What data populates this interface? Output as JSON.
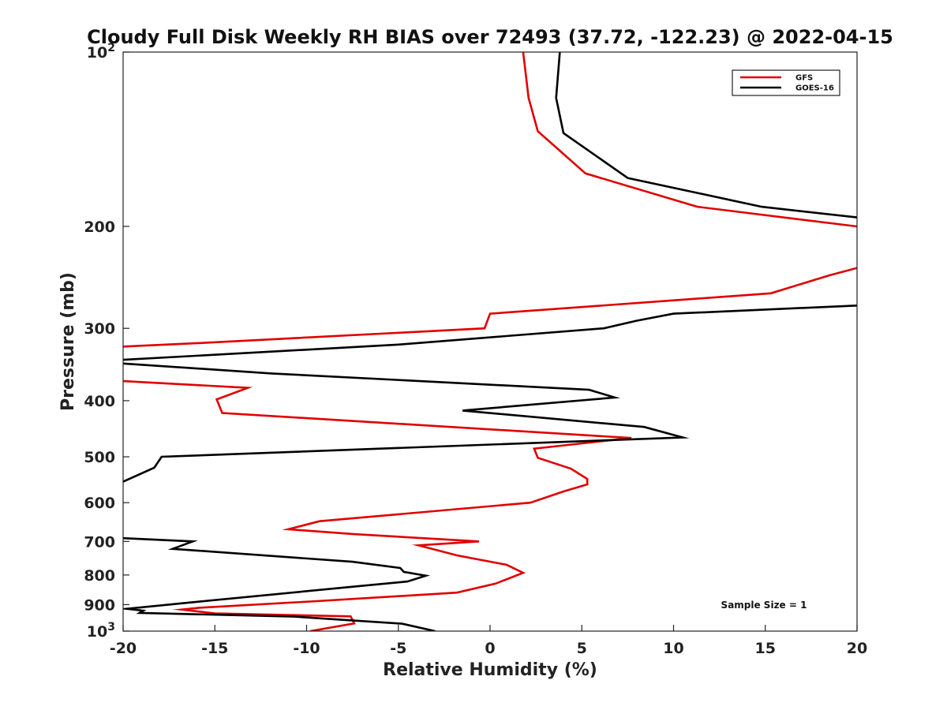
{
  "chart_data": {
    "type": "line",
    "title": "Cloudy Full Disk Weekly RH BIAS over 72493 (37.72, -122.23) @ 2022-04-15",
    "xlabel": "Relative Humidity (%)",
    "ylabel": "Pressure (mb)",
    "xlim": [
      -20,
      20
    ],
    "ylim": [
      100,
      1000
    ],
    "yscale": "log",
    "yreversed": true,
    "x_ticks": [
      -20,
      -15,
      -10,
      -5,
      0,
      5,
      10,
      15,
      20
    ],
    "x_tick_labels": [
      "-20",
      "-15",
      "-10",
      "-5",
      "0",
      "5",
      "10",
      "15",
      "20"
    ],
    "y_ticks": [
      {
        "value": 100,
        "label": "10",
        "sup": "2"
      },
      {
        "value": 200,
        "label": "200",
        "sup": ""
      },
      {
        "value": 300,
        "label": "300",
        "sup": ""
      },
      {
        "value": 400,
        "label": "400",
        "sup": ""
      },
      {
        "value": 500,
        "label": "500",
        "sup": ""
      },
      {
        "value": 600,
        "label": "600",
        "sup": ""
      },
      {
        "value": 700,
        "label": "700",
        "sup": ""
      },
      {
        "value": 800,
        "label": "800",
        "sup": ""
      },
      {
        "value": 900,
        "label": "900",
        "sup": ""
      },
      {
        "value": 1000,
        "label": "10",
        "sup": "3"
      }
    ],
    "legend_position": "top-right",
    "grid": false,
    "annotation": "Sample Size = 1",
    "series": [
      {
        "name": "GFS",
        "color": "#e00000",
        "points": [
          [
            1.8,
            100
          ],
          [
            2.1,
            120
          ],
          [
            2.6,
            137
          ],
          [
            5.2,
            162
          ],
          [
            11.3,
            185
          ],
          [
            20,
            200
          ],
          [
            26,
            210
          ],
          [
            18.5,
            243
          ],
          [
            15.3,
            261
          ],
          [
            0.0,
            283
          ],
          [
            -0.3,
            300
          ],
          [
            -15.8,
            318
          ],
          [
            -25,
            328
          ],
          [
            -25,
            355
          ],
          [
            -20,
            370
          ],
          [
            -13.2,
            380
          ],
          [
            -14.9,
            398
          ],
          [
            -14.6,
            420
          ],
          [
            7.7,
            464
          ],
          [
            2.4,
            484
          ],
          [
            2.6,
            502
          ],
          [
            4.4,
            524
          ],
          [
            5.3,
            546
          ],
          [
            5.3,
            558
          ],
          [
            4.0,
            574
          ],
          [
            2.2,
            600
          ],
          [
            -9.3,
            646
          ],
          [
            -11.0,
            667
          ],
          [
            -7.4,
            680
          ],
          [
            -0.6,
            700
          ],
          [
            -3.9,
            711
          ],
          [
            -1.8,
            740
          ],
          [
            0.9,
            768
          ],
          [
            1.8,
            793
          ],
          [
            0.3,
            828
          ],
          [
            -1.8,
            858
          ],
          [
            -9.8,
            889
          ],
          [
            -15.8,
            911
          ],
          [
            -16.8,
            918
          ],
          [
            -15.0,
            932
          ],
          [
            -7.6,
            943
          ],
          [
            -7.4,
            970
          ],
          [
            -9.8,
            1000
          ]
        ]
      },
      {
        "name": "GOES-16",
        "color": "#000000",
        "points": [
          [
            3.8,
            100
          ],
          [
            3.6,
            120
          ],
          [
            4.0,
            138
          ],
          [
            7.5,
            165
          ],
          [
            14.8,
            185
          ],
          [
            20,
            193
          ],
          [
            26,
            200
          ],
          [
            26,
            265
          ],
          [
            20,
            274
          ],
          [
            10.0,
            283
          ],
          [
            8.0,
            291
          ],
          [
            6.2,
            300
          ],
          [
            -5.0,
            320
          ],
          [
            -20,
            340
          ],
          [
            -25,
            344
          ],
          [
            -25,
            346
          ],
          [
            -20,
            345
          ],
          [
            -11.9,
            359
          ],
          [
            5.4,
            383
          ],
          [
            6.8,
            395
          ],
          [
            -1.5,
            416
          ],
          [
            8.4,
            444
          ],
          [
            10.5,
            463
          ],
          [
            -17.9,
            500
          ],
          [
            -18.3,
            522
          ],
          [
            -20,
            552
          ],
          [
            -25,
            570
          ],
          [
            -25,
            680
          ],
          [
            -20,
            691
          ],
          [
            -16.2,
            700
          ],
          [
            -17.3,
            721
          ],
          [
            -7.5,
            759
          ],
          [
            -4.9,
            778
          ],
          [
            -4.7,
            790
          ],
          [
            -3.5,
            802
          ],
          [
            -4.5,
            821
          ],
          [
            -7.3,
            837
          ],
          [
            -16.0,
            890
          ],
          [
            -19.8,
            915
          ],
          [
            -18.9,
            922
          ],
          [
            -19.1,
            930
          ],
          [
            -10.7,
            944
          ],
          [
            -4.8,
            971
          ],
          [
            -3.0,
            1000
          ]
        ]
      }
    ]
  }
}
